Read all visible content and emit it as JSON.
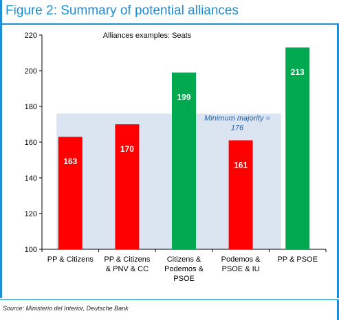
{
  "figure": {
    "title": "Figure 2: Summary of potential alliances",
    "source": "Source: Ministerio del Interior, Deutsche Bank"
  },
  "chart_data": {
    "type": "bar",
    "title": "Alliances examples: Seats",
    "categories": [
      [
        "PP &  Citizens"
      ],
      [
        "PP &  Citizens",
        "& PNV & CC"
      ],
      [
        "Citizens &",
        "Podemos &",
        "PSOE"
      ],
      [
        "Podemos &",
        "PSOE & IU"
      ],
      [
        "PP & PSOE"
      ]
    ],
    "values": [
      163,
      170,
      199,
      161,
      213
    ],
    "value_labels": [
      "163",
      "170",
      "199",
      "161",
      "213"
    ],
    "bar_colors": [
      "#ff0000",
      "#ff0000",
      "#00a84f",
      "#ff0000",
      "#00a84f"
    ],
    "ylim": [
      100,
      220
    ],
    "yticks": [
      100,
      120,
      140,
      160,
      180,
      200,
      220
    ],
    "threshold": {
      "value": 176,
      "label_line1": "Minimum majority  =",
      "label_line2": "176",
      "color": "#dbe5f1",
      "label_color": "#1f5fa8"
    },
    "grid": false
  }
}
